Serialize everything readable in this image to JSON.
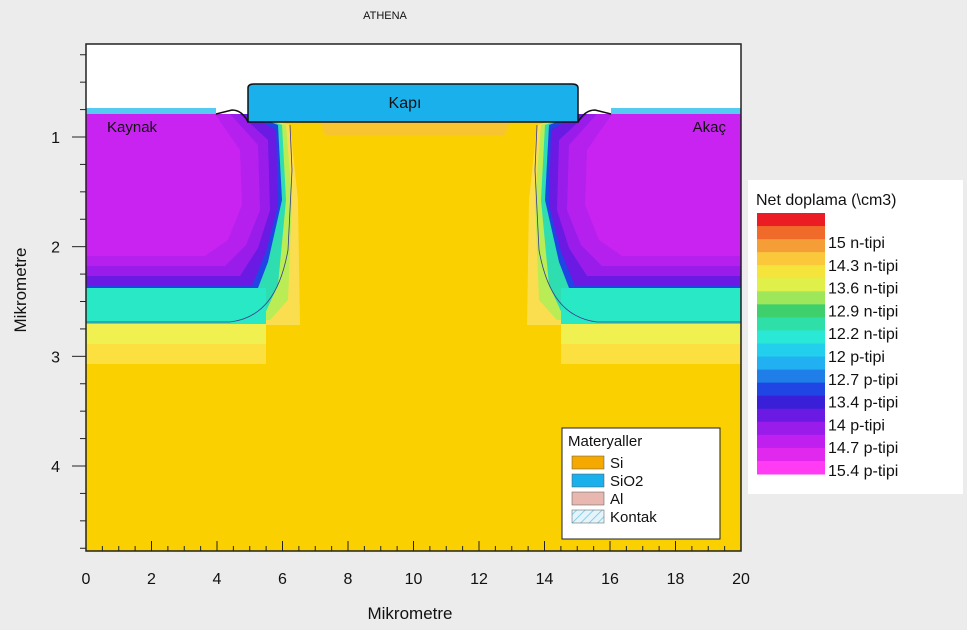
{
  "chart_data": {
    "type": "heatmap",
    "title": "ATHENA",
    "xlabel": "Mikrometre",
    "ylabel": "Mikrometre",
    "xlim": [
      0,
      20
    ],
    "ylim": [
      4.75,
      0.3
    ],
    "x_ticks": [
      "0",
      "2",
      "4",
      "6",
      "8",
      "10",
      "12",
      "14",
      "16",
      "18",
      "20"
    ],
    "y_ticks": [
      "1",
      "2",
      "3",
      "4"
    ],
    "region_labels": {
      "source": "Kaynak",
      "gate": "Kapı",
      "drain": "Akaç"
    },
    "materials_legend": {
      "title": "Materyaller",
      "items": [
        {
          "label": "Si",
          "color": "#f5a800"
        },
        {
          "label": "SiO2",
          "color": "#1ab0ec"
        },
        {
          "label": "Al",
          "color": "#e8b8b0"
        },
        {
          "label": "Kontak",
          "color": "#d0ecf4"
        }
      ]
    },
    "doping_legend": {
      "title": "Net doplama (\\cm3)",
      "labels": [
        "15 n-tipi",
        "14.3 n-tipi",
        "13.6 n-tipi",
        "12.9 n-tipi",
        "12.2 n-tipi",
        "12 p-tipi",
        "12.7 p-tipi",
        "13.4 p-tipi",
        "14 p-tipi",
        "14.7 p-tipi",
        "15.4 p-tipi"
      ],
      "colors": [
        "#ec1c24",
        "#f06a2a",
        "#f59d36",
        "#fbc83c",
        "#f5e43c",
        "#dff04a",
        "#9ee65a",
        "#3ed06c",
        "#2ee0a8",
        "#29e8d6",
        "#22d0ee",
        "#21b0f2",
        "#1f7ee8",
        "#1f46e4",
        "#3a1fd8",
        "#6a1ae2",
        "#9a1ceb",
        "#c020ef",
        "#e028ee",
        "#ff3cf4"
      ]
    }
  }
}
